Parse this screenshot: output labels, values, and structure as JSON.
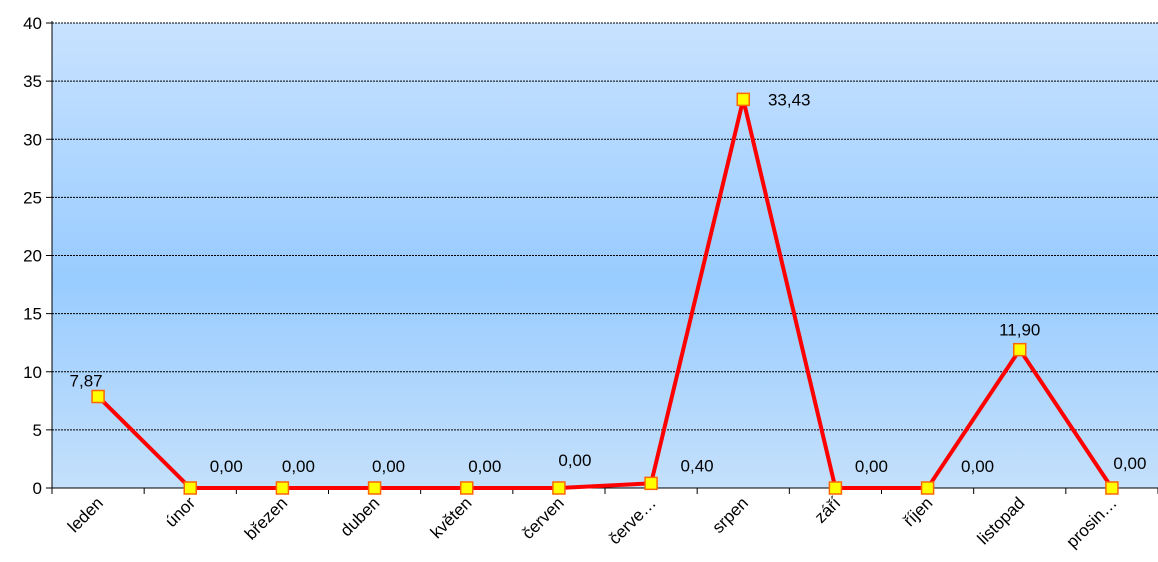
{
  "chart_data": {
    "type": "line",
    "title": "",
    "xlabel": "",
    "ylabel": "",
    "categories": [
      "leden",
      "únor",
      "březen",
      "duben",
      "květen",
      "červen",
      "červe…",
      "srpen",
      "září",
      "říjen",
      "listopad",
      "prosin…"
    ],
    "series": [
      {
        "values": [
          7.87,
          0.0,
          0.0,
          0.0,
          0.0,
          0.0,
          0.4,
          33.43,
          0.0,
          0.0,
          11.9,
          0.0
        ],
        "labels": [
          "7,87",
          "0,00",
          "0,00",
          "0,00",
          "0,00",
          "0,00",
          "0,40",
          "33,43",
          "0,00",
          "0,00",
          "11,90",
          "0,00"
        ]
      }
    ],
    "ylim": [
      0,
      40
    ],
    "yticks": [
      "0",
      "5",
      "10",
      "15",
      "20",
      "25",
      "30",
      "35",
      "40"
    ],
    "grid": true,
    "legend": "none",
    "colors": {
      "line": "#ff0000",
      "marker_fill": "#ffff00",
      "marker_stroke": "#ff6600",
      "plot_bg_top": "#d6eaff",
      "plot_bg_mid": "#99ccff",
      "grid": "#000000"
    }
  }
}
